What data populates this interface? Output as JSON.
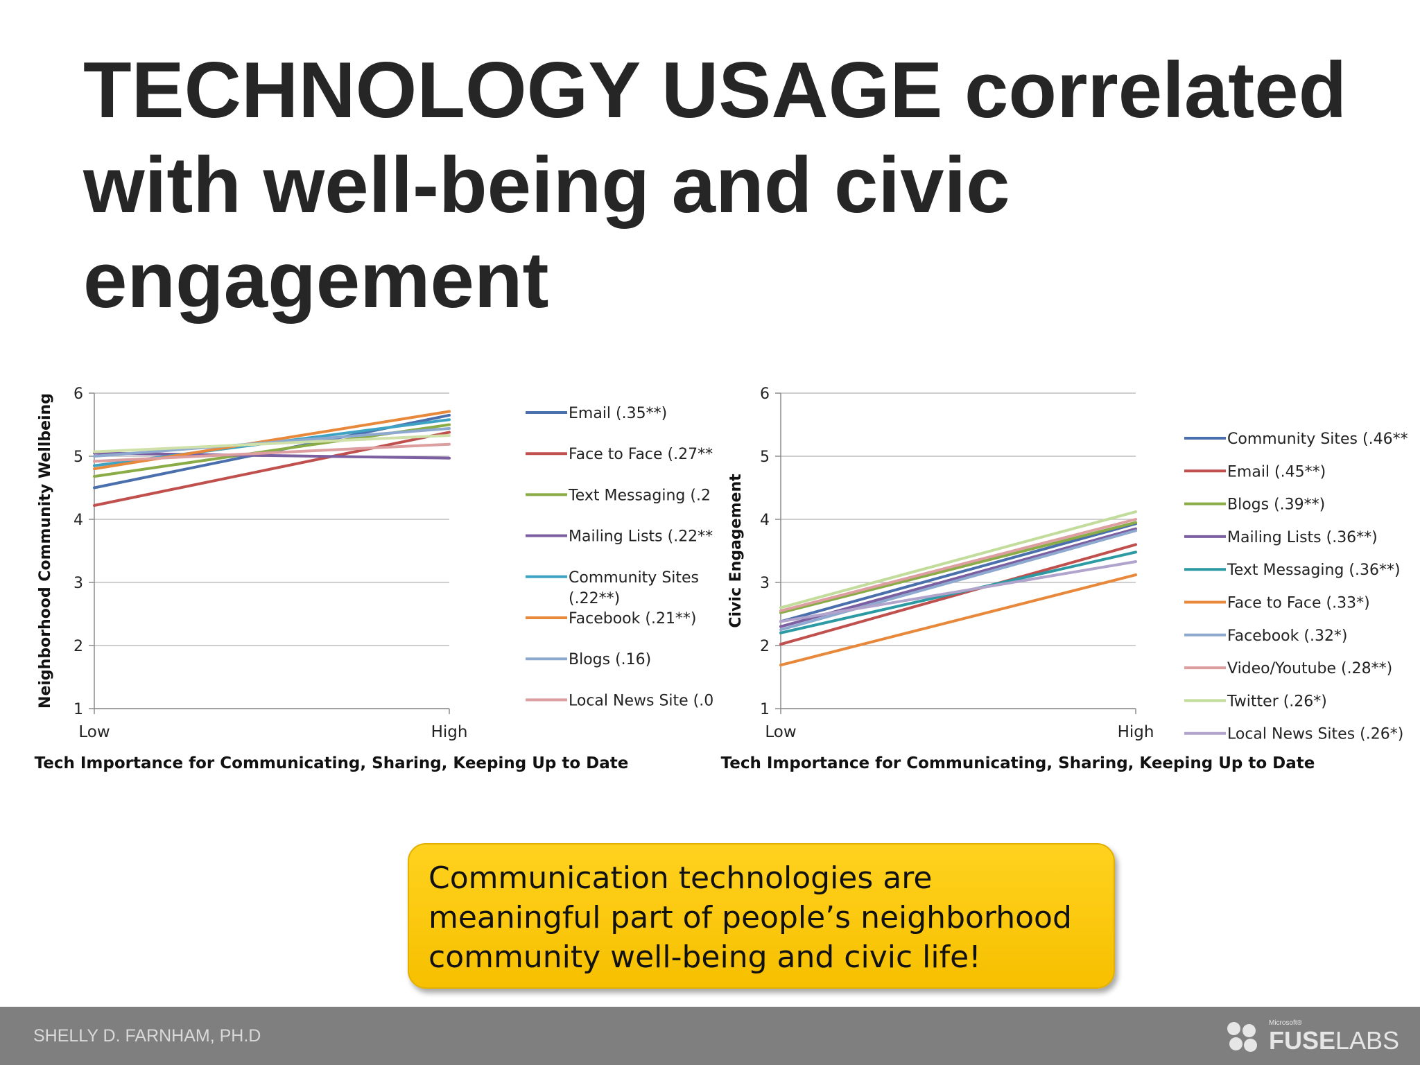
{
  "slide": {
    "title": "TECHNOLOGY USAGE correlated with well-being and civic engagement",
    "callout": "Communication technologies are meaningful part of people’s neighborhood community well-being and civic life!",
    "footer_author": "SHELLY D. FARNHAM, PH.D",
    "logo_small": "Microsoft®",
    "logo_bold": "FUSE",
    "logo_light": "LABS"
  },
  "chart_data": [
    {
      "type": "line",
      "x": [
        "Low",
        "High"
      ],
      "ylabel": "Neighborhood Community Wellbeing",
      "xlabel": "Tech Importance for Communicating, Sharing, Keeping Up to Date",
      "ylim": [
        1,
        6
      ],
      "yticks": [
        "1",
        "2",
        "3",
        "4",
        "5",
        "6"
      ],
      "grid": true,
      "legend_position": "right",
      "series": [
        {
          "name": "Email (.35**)",
          "values": [
            4.5,
            5.65
          ],
          "color": "#4a6fad"
        },
        {
          "name": "Face to Face (.27**",
          "values": [
            4.22,
            5.38
          ],
          "color": "#c0504d"
        },
        {
          "name": "Text Messaging (.2",
          "values": [
            4.68,
            5.5
          ],
          "color": "#8aac46"
        },
        {
          "name": "Mailing Lists (.22**",
          "values": [
            5.05,
            4.97
          ],
          "color": "#7b5fa0"
        },
        {
          "name": "Community Sites (.22**)",
          "values": [
            4.85,
            5.58
          ],
          "color": "#3ea3c2"
        },
        {
          "name": "Facebook (.21**)",
          "values": [
            4.8,
            5.71
          ],
          "color": "#e8883a"
        },
        {
          "name": "Blogs (.16)",
          "values": [
            5.0,
            5.44
          ],
          "color": "#8ea9d0"
        },
        {
          "name": "Local News Site (.0",
          "values": [
            4.92,
            5.19
          ],
          "color": "#dd9ea0"
        },
        {
          "name": "",
          "values": [
            5.07,
            5.33
          ],
          "color": "#cfe0a9"
        }
      ]
    },
    {
      "type": "line",
      "x": [
        "Low",
        "High"
      ],
      "ylabel": "Civic Engagement",
      "xlabel": "Tech Importance for Communicating, Sharing, Keeping Up to Date",
      "ylim": [
        1,
        6
      ],
      "yticks": [
        "1",
        "2",
        "3",
        "4",
        "5",
        "6"
      ],
      "grid": true,
      "legend_position": "right",
      "series": [
        {
          "name": "Community Sites (.46**)",
          "values": [
            2.38,
            3.93
          ],
          "color": "#4a6fad"
        },
        {
          "name": "Email (.45**)",
          "values": [
            2.02,
            3.6
          ],
          "color": "#c0504d"
        },
        {
          "name": "Blogs (.39**)",
          "values": [
            2.52,
            3.95
          ],
          "color": "#8aac46"
        },
        {
          "name": "Mailing Lists (.36**)",
          "values": [
            2.3,
            3.85
          ],
          "color": "#7b5fa0"
        },
        {
          "name": "Text Messaging (.36**)",
          "values": [
            2.2,
            3.48
          ],
          "color": "#2c9aa3"
        },
        {
          "name": "Face to Face (.33*)",
          "values": [
            1.69,
            3.12
          ],
          "color": "#e8883a"
        },
        {
          "name": "Facebook (.32*)",
          "values": [
            2.25,
            3.82
          ],
          "color": "#8ea9d0"
        },
        {
          "name": "Video/Youtube (.28**)",
          "values": [
            2.55,
            4.0
          ],
          "color": "#dd9ea0"
        },
        {
          "name": "Twitter (.26*)",
          "values": [
            2.6,
            4.12
          ],
          "color": "#c2dc9c"
        },
        {
          "name": "Local News Sites (.26*)",
          "values": [
            2.38,
            3.33
          ],
          "color": "#b0a3cc"
        }
      ]
    }
  ]
}
